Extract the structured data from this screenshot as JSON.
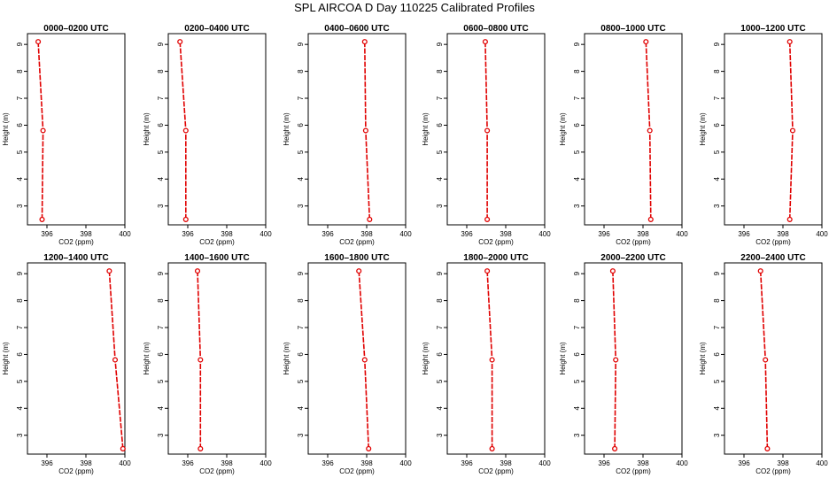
{
  "figure": {
    "title": "SPL AIRCOA D  Day 110225  Calibrated Profiles"
  },
  "chart_data": [
    {
      "type": "line",
      "title": "0000–0200 UTC",
      "xlabel": "CO2 (ppm)",
      "ylabel": "Height (m)",
      "xlim": [
        395,
        400
      ],
      "ylim": [
        2.3,
        9.4
      ],
      "xticks": [
        "396",
        "398",
        "400"
      ],
      "yticks": [
        "3",
        "4",
        "5",
        "6",
        "7",
        "8",
        "9"
      ],
      "series": [
        {
          "x": [
            395.55,
            395.8,
            395.75
          ],
          "y": [
            9.1,
            5.8,
            2.5
          ]
        }
      ]
    },
    {
      "type": "line",
      "title": "0200–0400 UTC",
      "xlabel": "CO2 (ppm)",
      "ylabel": "Height (m)",
      "xlim": [
        395,
        400
      ],
      "ylim": [
        2.3,
        9.4
      ],
      "xticks": [
        "396",
        "398",
        "400"
      ],
      "yticks": [
        "3",
        "4",
        "5",
        "6",
        "7",
        "8",
        "9"
      ],
      "series": [
        {
          "x": [
            395.6,
            395.9,
            395.9
          ],
          "y": [
            9.1,
            5.8,
            2.5
          ]
        }
      ]
    },
    {
      "type": "line",
      "title": "0400–0600 UTC",
      "xlabel": "CO2 (ppm)",
      "ylabel": "Height (m)",
      "xlim": [
        395,
        400
      ],
      "ylim": [
        2.3,
        9.4
      ],
      "xticks": [
        "396",
        "398",
        "400"
      ],
      "yticks": [
        "3",
        "4",
        "5",
        "6",
        "7",
        "8",
        "9"
      ],
      "series": [
        {
          "x": [
            397.9,
            397.95,
            398.15
          ],
          "y": [
            9.1,
            5.8,
            2.5
          ]
        }
      ]
    },
    {
      "type": "line",
      "title": "0600–0800 UTC",
      "xlabel": "CO2 (ppm)",
      "ylabel": "Height (m)",
      "xlim": [
        395,
        400
      ],
      "ylim": [
        2.3,
        9.4
      ],
      "xticks": [
        "396",
        "398",
        "400"
      ],
      "yticks": [
        "3",
        "4",
        "5",
        "6",
        "7",
        "8",
        "9"
      ],
      "series": [
        {
          "x": [
            396.95,
            397.05,
            397.05
          ],
          "y": [
            9.1,
            5.8,
            2.5
          ]
        }
      ]
    },
    {
      "type": "line",
      "title": "0800–1000 UTC",
      "xlabel": "CO2 (ppm)",
      "ylabel": "Height (m)",
      "xlim": [
        395,
        400
      ],
      "ylim": [
        2.3,
        9.4
      ],
      "xticks": [
        "396",
        "398",
        "400"
      ],
      "yticks": [
        "3",
        "4",
        "5",
        "6",
        "7",
        "8",
        "9"
      ],
      "series": [
        {
          "x": [
            398.15,
            398.35,
            398.4
          ],
          "y": [
            9.1,
            5.8,
            2.5
          ]
        }
      ]
    },
    {
      "type": "line",
      "title": "1000–1200 UTC",
      "xlabel": "CO2 (ppm)",
      "ylabel": "Height (m)",
      "xlim": [
        395,
        400
      ],
      "ylim": [
        2.3,
        9.4
      ],
      "xticks": [
        "396",
        "398",
        "400"
      ],
      "yticks": [
        "3",
        "4",
        "5",
        "6",
        "7",
        "8",
        "9"
      ],
      "series": [
        {
          "x": [
            398.35,
            398.5,
            398.35
          ],
          "y": [
            9.1,
            5.8,
            2.5
          ]
        }
      ]
    },
    {
      "type": "line",
      "title": "1200–1400 UTC",
      "xlabel": "CO2 (ppm)",
      "ylabel": "Height (m)",
      "xlim": [
        395,
        400
      ],
      "ylim": [
        2.3,
        9.4
      ],
      "xticks": [
        "396",
        "398",
        "400"
      ],
      "yticks": [
        "3",
        "4",
        "5",
        "6",
        "7",
        "8",
        "9"
      ],
      "series": [
        {
          "x": [
            399.2,
            399.5,
            399.9
          ],
          "y": [
            9.1,
            5.8,
            2.5
          ]
        }
      ]
    },
    {
      "type": "line",
      "title": "1400–1600 UTC",
      "xlabel": "CO2 (ppm)",
      "ylabel": "Height (m)",
      "xlim": [
        395,
        400
      ],
      "ylim": [
        2.3,
        9.4
      ],
      "xticks": [
        "396",
        "398",
        "400"
      ],
      "yticks": [
        "3",
        "4",
        "5",
        "6",
        "7",
        "8",
        "9"
      ],
      "series": [
        {
          "x": [
            396.5,
            396.65,
            396.65
          ],
          "y": [
            9.1,
            5.8,
            2.5
          ]
        }
      ]
    },
    {
      "type": "line",
      "title": "1600–1800 UTC",
      "xlabel": "CO2 (ppm)",
      "ylabel": "Height (m)",
      "xlim": [
        395,
        400
      ],
      "ylim": [
        2.3,
        9.4
      ],
      "xticks": [
        "396",
        "398",
        "400"
      ],
      "yticks": [
        "3",
        "4",
        "5",
        "6",
        "7",
        "8",
        "9"
      ],
      "series": [
        {
          "x": [
            397.6,
            397.9,
            398.1
          ],
          "y": [
            9.1,
            5.8,
            2.5
          ]
        }
      ]
    },
    {
      "type": "line",
      "title": "1800–2000 UTC",
      "xlabel": "CO2 (ppm)",
      "ylabel": "Height (m)",
      "xlim": [
        395,
        400
      ],
      "ylim": [
        2.3,
        9.4
      ],
      "xticks": [
        "396",
        "398",
        "400"
      ],
      "yticks": [
        "3",
        "4",
        "5",
        "6",
        "7",
        "8",
        "9"
      ],
      "series": [
        {
          "x": [
            397.05,
            397.3,
            397.3
          ],
          "y": [
            9.1,
            5.8,
            2.5
          ]
        }
      ]
    },
    {
      "type": "line",
      "title": "2000–2200 UTC",
      "xlabel": "CO2 (ppm)",
      "ylabel": "Height (m)",
      "xlim": [
        395,
        400
      ],
      "ylim": [
        2.3,
        9.4
      ],
      "xticks": [
        "396",
        "398",
        "400"
      ],
      "yticks": [
        "3",
        "4",
        "5",
        "6",
        "7",
        "8",
        "9"
      ],
      "series": [
        {
          "x": [
            396.45,
            396.6,
            396.55
          ],
          "y": [
            9.1,
            5.8,
            2.5
          ]
        }
      ]
    },
    {
      "type": "line",
      "title": "2200–2400 UTC",
      "xlabel": "CO2 (ppm)",
      "ylabel": "Height (m)",
      "xlim": [
        395,
        400
      ],
      "ylim": [
        2.3,
        9.4
      ],
      "xticks": [
        "396",
        "398",
        "400"
      ],
      "yticks": [
        "3",
        "4",
        "5",
        "6",
        "7",
        "8",
        "9"
      ],
      "series": [
        {
          "x": [
            396.85,
            397.1,
            397.2
          ],
          "y": [
            9.1,
            5.8,
            2.5
          ]
        }
      ]
    }
  ]
}
